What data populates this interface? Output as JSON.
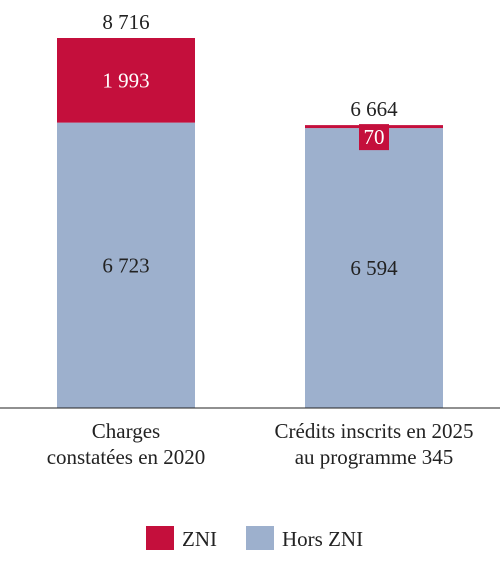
{
  "colors": {
    "zni": "#c40f3c",
    "hors_zni": "#9db0cd",
    "axis": "#222222",
    "label_on_zni": "#ffffff",
    "label_on_hors": "#222222"
  },
  "chart_data": {
    "type": "bar",
    "stacked": true,
    "categories": [
      [
        "Charges",
        "constatées en 2020"
      ],
      [
        "Crédits inscrits en 2025",
        "au programme 345"
      ]
    ],
    "series": [
      {
        "name": "Hors ZNI",
        "values": [
          6723,
          6594
        ],
        "value_labels": [
          "6 723",
          "6 594"
        ]
      },
      {
        "name": "ZNI",
        "values": [
          1993,
          70
        ],
        "value_labels": [
          "1 993",
          "70"
        ]
      }
    ],
    "totals": [
      8716,
      6664
    ],
    "total_labels": [
      "8 716",
      "6 664"
    ],
    "ylim": [
      0,
      8716
    ],
    "legend": {
      "position": "bottom",
      "entries": [
        "ZNI",
        "Hors ZNI"
      ]
    },
    "grid": false
  }
}
